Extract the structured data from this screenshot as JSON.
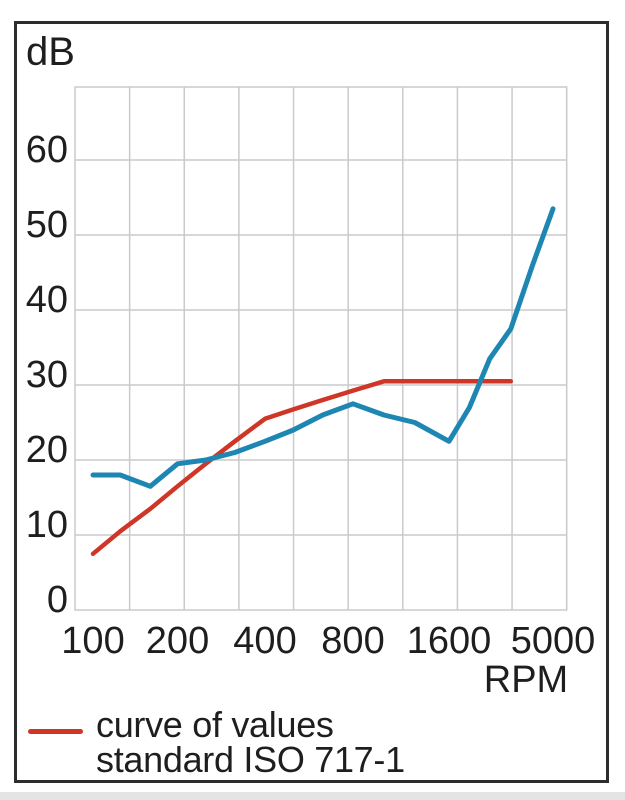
{
  "labels": {
    "y_unit": "dB",
    "x_unit": "RPM"
  },
  "legend": {
    "line1": "curve of values",
    "line2": "standard ISO 717-1"
  },
  "colors": {
    "reference_curve": "#cf3627",
    "measured_curve": "#1d86b2",
    "grid": "#cacaca",
    "frame": "#2d2d2d",
    "text": "#1e1e1e"
  },
  "chart_data": {
    "type": "line",
    "xlabel": "RPM",
    "ylabel": "dB",
    "x_scale": "log",
    "grid": true,
    "legend_position": "bottom-left",
    "x_ticks": [
      100,
      200,
      400,
      800,
      1600,
      5000
    ],
    "x_tick_labels": [
      "100",
      "200",
      "400",
      "800",
      "1600",
      "5000"
    ],
    "y_ticks": [
      0,
      10,
      20,
      30,
      40,
      50,
      60
    ],
    "y_range": [
      0,
      70
    ],
    "x": [
      100,
      125,
      160,
      200,
      250,
      315,
      400,
      500,
      630,
      800,
      1000,
      1250,
      1600,
      2000,
      2500,
      3150,
      4000,
      5000
    ],
    "series": [
      {
        "id": "iso-reference",
        "legend_label": "curve of values standard ISO 717-1",
        "color": "#cf3627",
        "values": [
          7.5,
          10.5,
          13.5,
          16.5,
          19.5,
          22.5,
          25.5,
          26.75,
          28,
          29.25,
          30.5,
          30.5,
          30.5,
          30.5,
          30.5,
          30.5,
          null,
          null
        ]
      },
      {
        "id": "measured",
        "legend_label": null,
        "color": "#1d86b2",
        "values": [
          18,
          18,
          16.5,
          19.5,
          20,
          21,
          22.5,
          24,
          26,
          27.5,
          26,
          25,
          22.5,
          27,
          33.5,
          37.5,
          46,
          53.5
        ]
      }
    ]
  }
}
